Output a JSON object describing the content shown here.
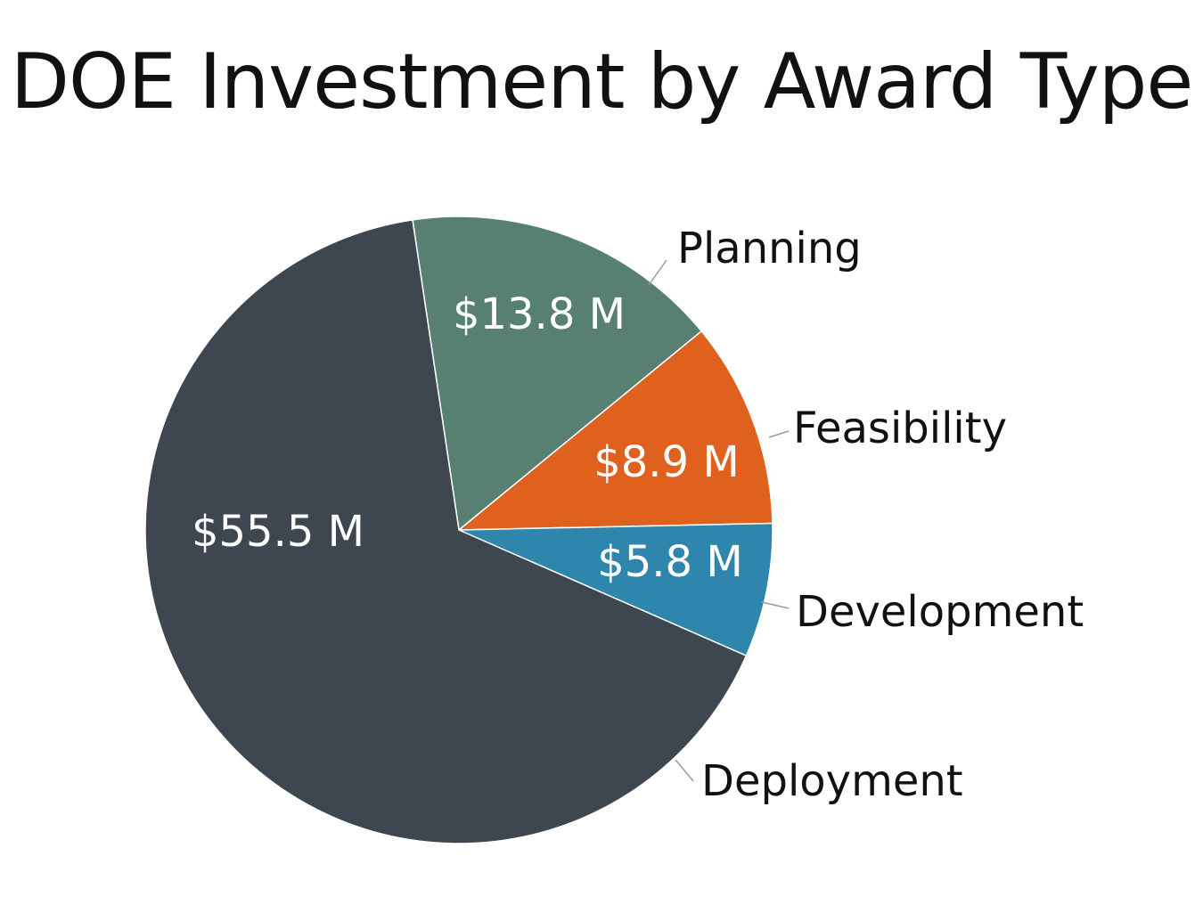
{
  "chart_data": {
    "type": "pie",
    "title": "DOE Investment by Award Type",
    "unit": "$ M",
    "slices": [
      {
        "label": "Planning",
        "value": 13.8,
        "value_label": "$13.8 M",
        "color": "#577f72"
      },
      {
        "label": "Feasibility",
        "value": 8.9,
        "value_label": "$8.9 M",
        "color": "#e0601e"
      },
      {
        "label": "Development",
        "value": 5.8,
        "value_label": "$5.8 M",
        "color": "#2e86ac"
      },
      {
        "label": "Deployment",
        "value": 55.5,
        "value_label": "$55.5 M",
        "color": "#3e4650"
      }
    ]
  }
}
